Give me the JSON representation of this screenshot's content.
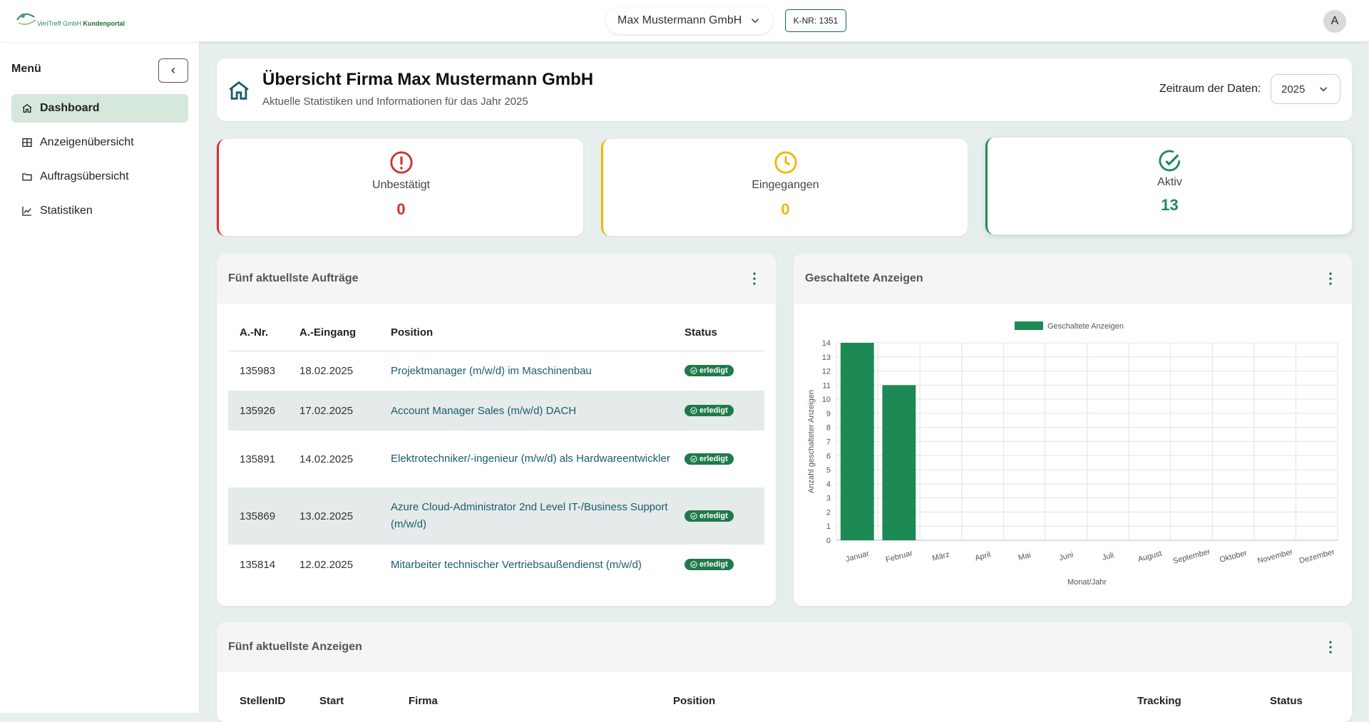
{
  "topbar": {
    "logo_brand": "VeriTreff GmbH",
    "logo_portal": "Kundenportal",
    "company": "Max Mustermann GmbH",
    "customer_number": "K-NR: 1351",
    "avatar_initial": "A"
  },
  "sidebar": {
    "title": "Menü",
    "items": [
      {
        "label": "Dashboard",
        "icon": "home-icon",
        "active": true
      },
      {
        "label": "Anzeigenübersicht",
        "icon": "grid-icon",
        "active": false
      },
      {
        "label": "Auftragsübersicht",
        "icon": "folder-icon",
        "active": false
      },
      {
        "label": "Statistiken",
        "icon": "chart-icon",
        "active": false
      }
    ]
  },
  "header": {
    "title": "Übersicht Firma Max Mustermann GmbH",
    "subtitle": "Aktuelle Statistiken und Informationen für das Jahr 2025",
    "period_label": "Zeitraum der Daten:",
    "period_value": "2025"
  },
  "stats": [
    {
      "label": "Unbestätigt",
      "value": "0",
      "color": "#d32f2f",
      "icon": "alert-circle-icon"
    },
    {
      "label": "Eingegangen",
      "value": "0",
      "color": "#f2b705",
      "icon": "clock-icon"
    },
    {
      "label": "Aktiv",
      "value": "13",
      "color": "#1f8a55",
      "icon": "check-circle-icon"
    }
  ],
  "orders": {
    "title": "Fünf aktuellste Aufträge",
    "columns": [
      "A.-Nr.",
      "A.-Eingang",
      "Position",
      "Status"
    ],
    "rows": [
      {
        "nr": "135983",
        "date": "18.02.2025",
        "position": "Projektmanager (m/w/d) im Maschinenbau",
        "status": "erledigt"
      },
      {
        "nr": "135926",
        "date": "17.02.2025",
        "position": "Account Manager Sales (m/w/d) DACH",
        "status": "erledigt"
      },
      {
        "nr": "135891",
        "date": "14.02.2025",
        "position": "Elektrotechniker/-ingenieur (m/w/d) als Hardwareentwickler",
        "status": "erledigt"
      },
      {
        "nr": "135869",
        "date": "13.02.2025",
        "position": "Azure Cloud-Administrator 2nd Level IT-/Business Support (m/w/d)",
        "status": "erledigt"
      },
      {
        "nr": "135814",
        "date": "12.02.2025",
        "position": "Mitarbeiter technischer Vertriebsaußendienst (m/w/d)",
        "status": "erledigt"
      }
    ]
  },
  "ads_panel": {
    "title": "Geschaltete Anzeigen"
  },
  "chart_data": {
    "type": "bar",
    "categories": [
      "Januar",
      "Februar",
      "März",
      "April",
      "Mai",
      "Juni",
      "Juli",
      "August",
      "September",
      "Oktober",
      "November",
      "Dezember"
    ],
    "series": [
      {
        "name": "Geschaltete Anzeigen",
        "values": [
          14,
          11,
          0,
          0,
          0,
          0,
          0,
          0,
          0,
          0,
          0,
          0
        ],
        "color": "#1d8a55"
      }
    ],
    "xlabel": "Monat/Jahr",
    "ylabel": "Anzahl geschalteter Anzeigen",
    "ylim": [
      0,
      14
    ],
    "yticks": [
      0,
      1,
      2,
      3,
      4,
      5,
      6,
      7,
      8,
      9,
      10,
      11,
      12,
      13,
      14
    ],
    "grid": true,
    "legend": "top-center"
  },
  "recent_ads": {
    "title": "Fünf aktuellste Anzeigen",
    "columns": [
      "StellenID",
      "Start",
      "Firma",
      "Position",
      "Tracking",
      "Status"
    ]
  }
}
